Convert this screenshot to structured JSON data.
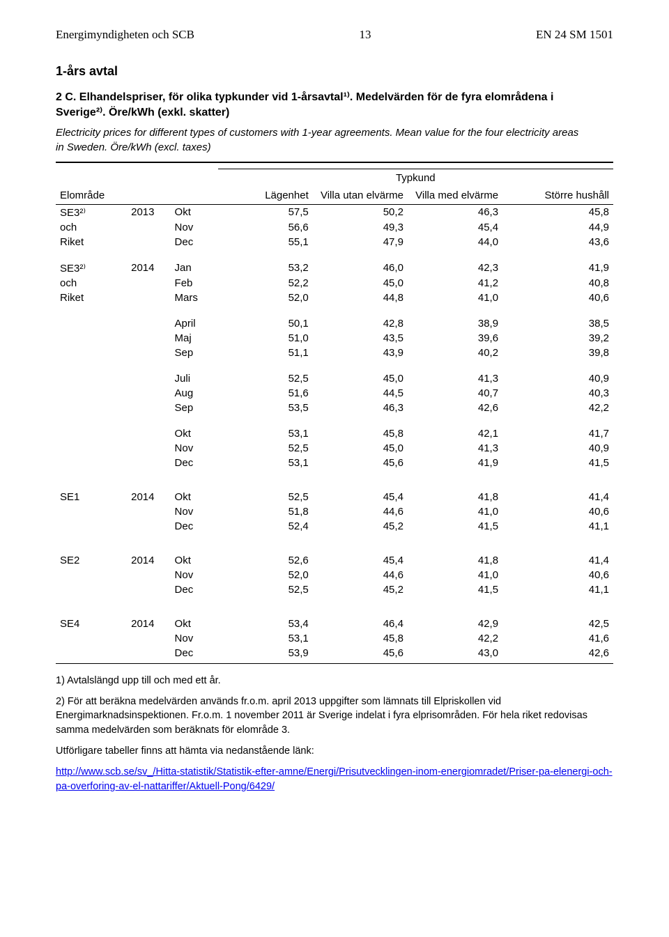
{
  "header": {
    "left": "Energimyndigheten och SCB",
    "page": "13",
    "right": "EN 24 SM 1501"
  },
  "section_title": "1-års avtal",
  "table": {
    "title": "2 C. Elhandelspriser, för olika typkunder vid 1-årsavtal¹⁾. Medelvärden för de fyra elområdena i Sverige²⁾. Öre/kWh (exkl. skatter)",
    "subtitle": "Electricity prices for different types of customers with 1-year agreements. Mean value for the four electricity areas in Sweden. Öre/kWh (excl. taxes)",
    "col_group": "Typkund",
    "col_area": "Elområde",
    "col_lagenhet": "Lägenhet",
    "col_villa_utan": "Villa utan elvärme",
    "col_villa_med": "Villa med elvärme",
    "col_storre": "Större hushåll",
    "rows": [
      {
        "area": "SE3²⁾",
        "year": "2013",
        "mon": "Okt",
        "v": [
          "57,5",
          "50,2",
          "46,3",
          "45,8"
        ]
      },
      {
        "area": "och",
        "year": "",
        "mon": "Nov",
        "v": [
          "56,6",
          "49,3",
          "45,4",
          "44,9"
        ]
      },
      {
        "area": "Riket",
        "year": "",
        "mon": "Dec",
        "v": [
          "55,1",
          "47,9",
          "44,0",
          "43,6"
        ]
      },
      {
        "gap": true
      },
      {
        "area": "SE3²⁾",
        "year": "2014",
        "mon": "Jan",
        "v": [
          "53,2",
          "46,0",
          "42,3",
          "41,9"
        ]
      },
      {
        "area": "och",
        "year": "",
        "mon": "Feb",
        "v": [
          "52,2",
          "45,0",
          "41,2",
          "40,8"
        ]
      },
      {
        "area": "Riket",
        "year": "",
        "mon": "Mars",
        "v": [
          "52,0",
          "44,8",
          "41,0",
          "40,6"
        ]
      },
      {
        "gap": true
      },
      {
        "area": "",
        "year": "",
        "mon": "April",
        "v": [
          "50,1",
          "42,8",
          "38,9",
          "38,5"
        ]
      },
      {
        "area": "",
        "year": "",
        "mon": "Maj",
        "v": [
          "51,0",
          "43,5",
          "39,6",
          "39,2"
        ]
      },
      {
        "area": "",
        "year": "",
        "mon": "Sep",
        "v": [
          "51,1",
          "43,9",
          "40,2",
          "39,8"
        ]
      },
      {
        "gap": true
      },
      {
        "area": "",
        "year": "",
        "mon": "Juli",
        "v": [
          "52,5",
          "45,0",
          "41,3",
          "40,9"
        ]
      },
      {
        "area": "",
        "year": "",
        "mon": "Aug",
        "v": [
          "51,6",
          "44,5",
          "40,7",
          "40,3"
        ]
      },
      {
        "area": "",
        "year": "",
        "mon": "Sep",
        "v": [
          "53,5",
          "46,3",
          "42,6",
          "42,2"
        ]
      },
      {
        "gap": true
      },
      {
        "area": "",
        "year": "",
        "mon": "Okt",
        "v": [
          "53,1",
          "45,8",
          "42,1",
          "41,7"
        ]
      },
      {
        "area": "",
        "year": "",
        "mon": "Nov",
        "v": [
          "52,5",
          "45,0",
          "41,3",
          "40,9"
        ]
      },
      {
        "area": "",
        "year": "",
        "mon": "Dec",
        "v": [
          "53,1",
          "45,6",
          "41,9",
          "41,5"
        ]
      },
      {
        "gaplg": true
      },
      {
        "area": "SE1",
        "year": "2014",
        "mon": "Okt",
        "v": [
          "52,5",
          "45,4",
          "41,8",
          "41,4"
        ]
      },
      {
        "area": "",
        "year": "",
        "mon": "Nov",
        "v": [
          "51,8",
          "44,6",
          "41,0",
          "40,6"
        ]
      },
      {
        "area": "",
        "year": "",
        "mon": "Dec",
        "v": [
          "52,4",
          "45,2",
          "41,5",
          "41,1"
        ]
      },
      {
        "gaplg": true
      },
      {
        "area": "SE2",
        "year": "2014",
        "mon": "Okt",
        "v": [
          "52,6",
          "45,4",
          "41,8",
          "41,4"
        ]
      },
      {
        "area": "",
        "year": "",
        "mon": "Nov",
        "v": [
          "52,0",
          "44,6",
          "41,0",
          "40,6"
        ]
      },
      {
        "area": "",
        "year": "",
        "mon": "Dec",
        "v": [
          "52,5",
          "45,2",
          "41,5",
          "41,1"
        ]
      },
      {
        "gaplg": true
      },
      {
        "area": "SE4",
        "year": "2014",
        "mon": "Okt",
        "v": [
          "53,4",
          "46,4",
          "42,9",
          "42,5"
        ]
      },
      {
        "area": "",
        "year": "",
        "mon": "Nov",
        "v": [
          "53,1",
          "45,8",
          "42,2",
          "41,6"
        ]
      },
      {
        "area": "",
        "year": "",
        "mon": "Dec",
        "v": [
          "53,9",
          "45,6",
          "43,0",
          "42,6"
        ]
      }
    ]
  },
  "footnotes": {
    "f1": "1) Avtalslängd upp till och med ett år.",
    "f2": "2) För att beräkna medelvärden används fr.o.m. april 2013 uppgifter som lämnats till Elpriskollen vid Energimarknadsinspektionen. Fr.o.m. 1 november 2011 är Sverige indelat i fyra elprisområden. För hela riket redovisas samma medelvärden som beräknats för elområde 3.",
    "more": "Utförligare tabeller finns att hämta via nedanstående länk:",
    "link": "http://www.scb.se/sv_/Hitta-statistik/Statistik-efter-amne/Energi/Prisutvecklingen-inom-energiomradet/Priser-pa-elenergi-och-pa-overforing-av-el-nattariffer/Aktuell-Pong/6429/"
  }
}
